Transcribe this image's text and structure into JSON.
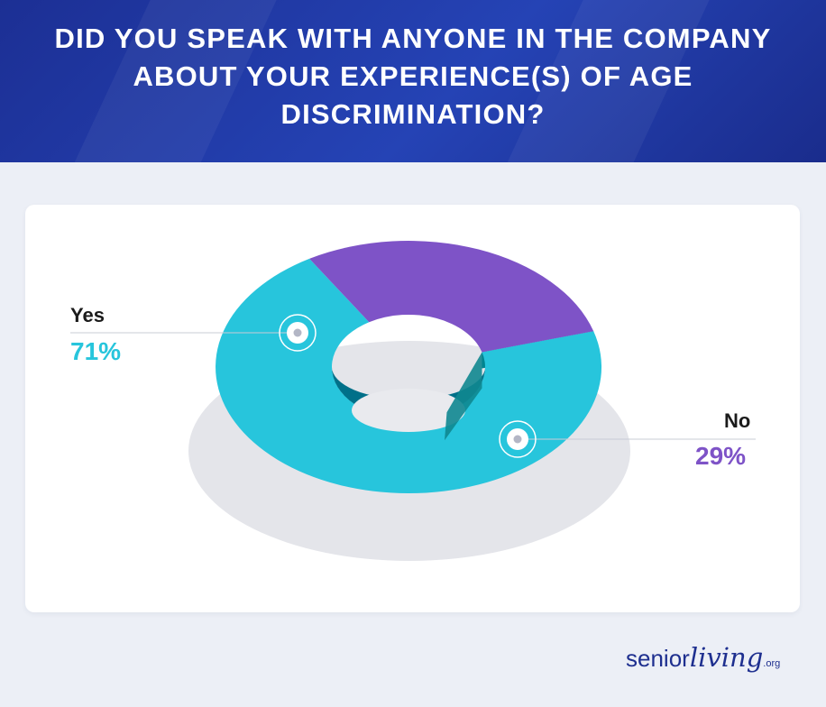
{
  "title": "DID YOU SPEAK WITH ANYONE IN THE COMPANY ABOUT YOUR EXPERIENCE(S) OF AGE DISCRIMINATION?",
  "chart_data": {
    "type": "pie",
    "style": "3d-donut",
    "title": "DID YOU SPEAK WITH ANYONE IN THE COMPANY ABOUT YOUR EXPERIENCE(S) OF AGE DISCRIMINATION?",
    "categories": [
      "Yes",
      "No"
    ],
    "values": [
      71,
      29
    ],
    "value_labels": [
      "71%",
      "29%"
    ],
    "colors": {
      "Yes": {
        "top": "#27c5dc",
        "side": "#00848f",
        "inner": "#007089"
      },
      "No": {
        "top": "#7e53c7",
        "side": "#4c2aa6",
        "inner": "#0f8790"
      }
    },
    "label_colors": {
      "Yes": "#27c5dc",
      "No": "#7e53c7"
    }
  },
  "legend": [
    {
      "label": "Yes",
      "value": "71%"
    },
    {
      "label": "No",
      "value": "29%"
    }
  ],
  "logo": {
    "senior": "senior",
    "living": "living",
    "org": ".org"
  }
}
